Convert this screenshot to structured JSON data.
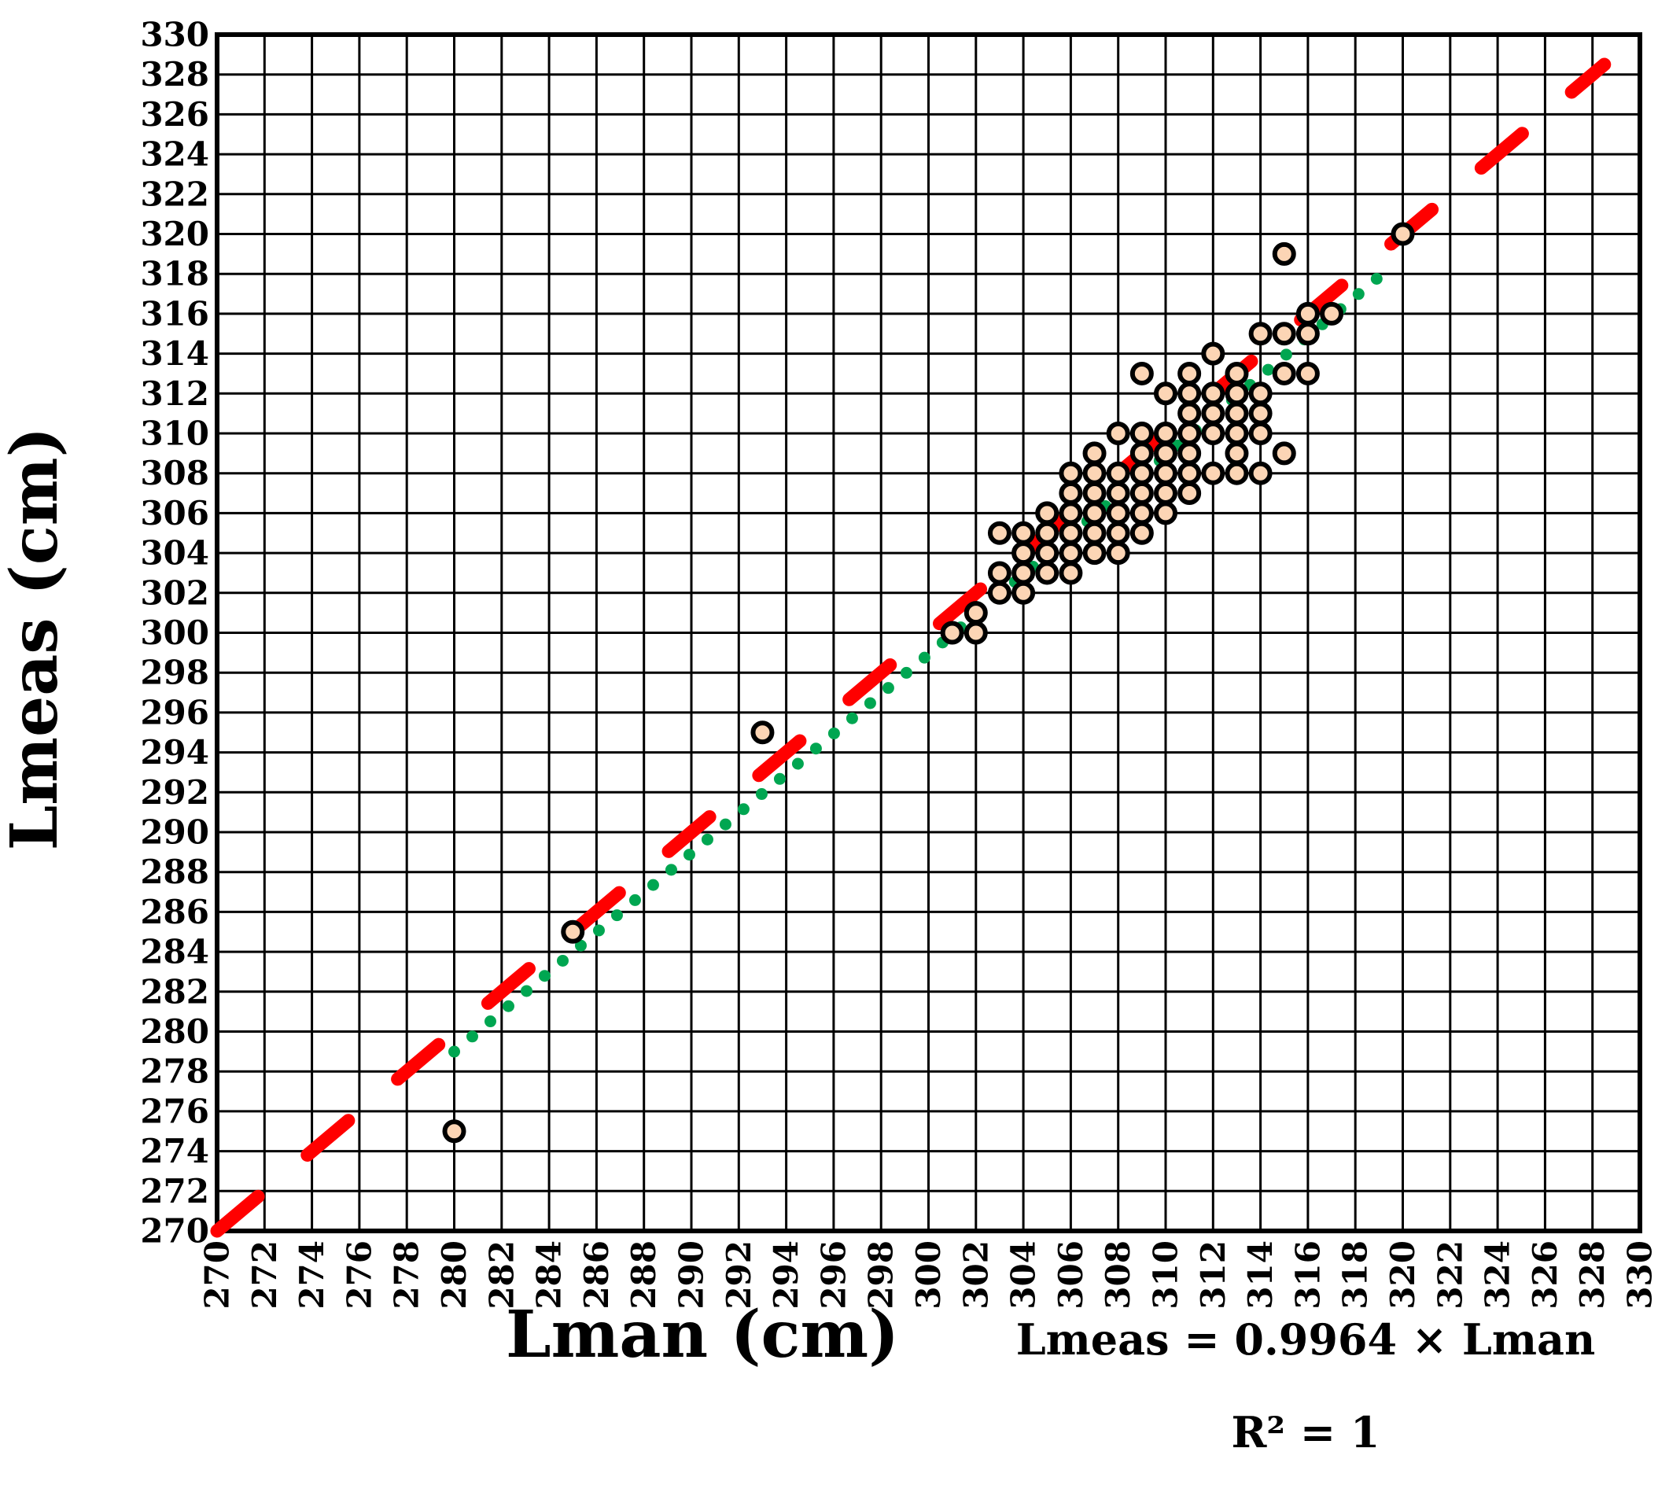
{
  "chart_data": {
    "type": "scatter",
    "xlabel": "Lman (cm)",
    "ylabel": "Lmeas (cm)",
    "xlim": [
      270,
      330
    ],
    "ylim": [
      270,
      330
    ],
    "x_ticks": [
      "270",
      "272",
      "274",
      "276",
      "278",
      "280",
      "282",
      "284",
      "286",
      "288",
      "290",
      "292",
      "294",
      "296",
      "298",
      "300",
      "302",
      "304",
      "306",
      "308",
      "310",
      "312",
      "314",
      "316",
      "318",
      "320",
      "322",
      "324",
      "326",
      "328",
      "330"
    ],
    "y_ticks": [
      "270",
      "272",
      "274",
      "276",
      "278",
      "280",
      "282",
      "284",
      "286",
      "288",
      "290",
      "292",
      "294",
      "296",
      "298",
      "300",
      "302",
      "304",
      "306",
      "308",
      "310",
      "312",
      "314",
      "316",
      "318",
      "320",
      "322",
      "324",
      "326",
      "328",
      "330"
    ],
    "grid": true,
    "equation": "Lmeas = 0.9964 × Lman",
    "r_squared": "R² = 1",
    "identity_line": {
      "from": [
        270,
        270
      ],
      "to": [
        328.5,
        328.5
      ],
      "style": "dashed",
      "color": "#ff0000"
    },
    "fit_line": {
      "slope": 0.9964,
      "x_range": [
        280,
        319.5
      ],
      "style": "dotted",
      "color": "#00a651"
    },
    "marker_fill": "#fcd5b5",
    "marker_stroke": "#000000",
    "points": [
      [
        280,
        275
      ],
      [
        285,
        285
      ],
      [
        293,
        295
      ],
      [
        301,
        300
      ],
      [
        302,
        300
      ],
      [
        302,
        301
      ],
      [
        303,
        302
      ],
      [
        303,
        303
      ],
      [
        303,
        305
      ],
      [
        304,
        302
      ],
      [
        304,
        303
      ],
      [
        304,
        304
      ],
      [
        304,
        305
      ],
      [
        305,
        303
      ],
      [
        305,
        304
      ],
      [
        305,
        305
      ],
      [
        305,
        306
      ],
      [
        306,
        303
      ],
      [
        306,
        304
      ],
      [
        306,
        305
      ],
      [
        306,
        306
      ],
      [
        306,
        307
      ],
      [
        306,
        308
      ],
      [
        307,
        304
      ],
      [
        307,
        305
      ],
      [
        307,
        306
      ],
      [
        307,
        307
      ],
      [
        307,
        308
      ],
      [
        307,
        309
      ],
      [
        308,
        304
      ],
      [
        308,
        305
      ],
      [
        308,
        306
      ],
      [
        308,
        307
      ],
      [
        308,
        308
      ],
      [
        308,
        310
      ],
      [
        309,
        305
      ],
      [
        309,
        306
      ],
      [
        309,
        307
      ],
      [
        309,
        308
      ],
      [
        309,
        309
      ],
      [
        309,
        310
      ],
      [
        309,
        313
      ],
      [
        310,
        306
      ],
      [
        310,
        307
      ],
      [
        310,
        308
      ],
      [
        310,
        309
      ],
      [
        310,
        310
      ],
      [
        310,
        312
      ],
      [
        311,
        307
      ],
      [
        311,
        308
      ],
      [
        311,
        309
      ],
      [
        311,
        310
      ],
      [
        311,
        311
      ],
      [
        311,
        312
      ],
      [
        311,
        313
      ],
      [
        312,
        308
      ],
      [
        312,
        310
      ],
      [
        312,
        311
      ],
      [
        312,
        312
      ],
      [
        312,
        314
      ],
      [
        313,
        308
      ],
      [
        313,
        309
      ],
      [
        313,
        310
      ],
      [
        313,
        311
      ],
      [
        313,
        312
      ],
      [
        313,
        313
      ],
      [
        314,
        308
      ],
      [
        314,
        310
      ],
      [
        314,
        311
      ],
      [
        314,
        312
      ],
      [
        314,
        315
      ],
      [
        315,
        309
      ],
      [
        315,
        313
      ],
      [
        315,
        315
      ],
      [
        315,
        319
      ],
      [
        316,
        313
      ],
      [
        316,
        315
      ],
      [
        316,
        316
      ],
      [
        317,
        316
      ],
      [
        320,
        320
      ]
    ]
  }
}
